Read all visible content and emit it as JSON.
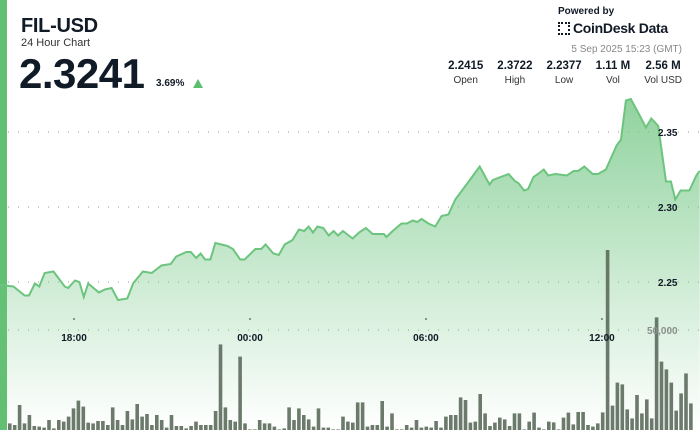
{
  "header": {
    "symbol": "FIL-USD",
    "subtitle": "24 Hour Chart",
    "price": "2.3241",
    "change": "3.69%",
    "change_direction": "up",
    "powered_by": "Powered by",
    "brand": "CoinDesk Data",
    "timestamp": "5 Sep 2025 15:23 (GMT)"
  },
  "stats": [
    {
      "value": "2.2415",
      "label": "Open"
    },
    {
      "value": "2.3722",
      "label": "High"
    },
    {
      "value": "2.2377",
      "label": "Low"
    },
    {
      "value": "1.11 M",
      "label": "Vol"
    },
    {
      "value": "2.56 M",
      "label": "Vol USD"
    }
  ],
  "colors": {
    "accent": "#62c072",
    "line": "#6cc47e",
    "volume": "#5c6b5c",
    "up": "#5cbf6e"
  },
  "chart_data": {
    "type": "area",
    "price_axis": {
      "ticks": [
        2.25,
        2.3,
        2.35
      ],
      "tick_labels": [
        "2.25",
        "2.30",
        "2.35"
      ],
      "grid": true
    },
    "volume_axis": {
      "ticks": [
        50000
      ],
      "tick_labels": [
        "50,000"
      ]
    },
    "x_ticks": [
      "18:00",
      "00:00",
      "06:00",
      "12:00"
    ],
    "price": [
      [
        "15:28",
        2.248
      ],
      [
        "15:56",
        2.247
      ],
      [
        "16:19",
        2.241
      ],
      [
        "16:28",
        2.241
      ],
      [
        "16:40",
        2.249
      ],
      [
        "16:49",
        2.247
      ],
      [
        "17:00",
        2.256
      ],
      [
        "17:18",
        2.257
      ],
      [
        "17:41",
        2.247
      ],
      [
        "17:48",
        2.246
      ],
      [
        "18:02",
        2.251
      ],
      [
        "18:11",
        2.25
      ],
      [
        "18:20",
        2.24
      ],
      [
        "18:29",
        2.249
      ],
      [
        "18:51",
        2.243
      ],
      [
        "19:03",
        2.245
      ],
      [
        "19:17",
        2.246
      ],
      [
        "19:30",
        2.238
      ],
      [
        "19:49",
        2.239
      ],
      [
        "20:01",
        2.249
      ],
      [
        "20:21",
        2.257
      ],
      [
        "20:39",
        2.256
      ],
      [
        "20:59",
        2.261
      ],
      [
        "21:18",
        2.262
      ],
      [
        "21:29",
        2.267
      ],
      [
        "21:50",
        2.27
      ],
      [
        "21:59",
        2.27
      ],
      [
        "22:10",
        2.266
      ],
      [
        "22:19",
        2.269
      ],
      [
        "22:28",
        2.265
      ],
      [
        "22:39",
        2.265
      ],
      [
        "22:49",
        2.276
      ],
      [
        "23:14",
        2.274
      ],
      [
        "23:25",
        2.272
      ],
      [
        "23:40",
        2.265
      ],
      [
        "23:49",
        2.265
      ],
      [
        "00:11",
        2.272
      ],
      [
        "00:23",
        2.272
      ],
      [
        "00:32",
        2.275
      ],
      [
        "00:48",
        2.269
      ],
      [
        "00:59",
        2.268
      ],
      [
        "01:11",
        2.275
      ],
      [
        "01:27",
        2.278
      ],
      [
        "01:40",
        2.285
      ],
      [
        "01:51",
        2.284
      ],
      [
        "02:00",
        2.287
      ],
      [
        "02:09",
        2.283
      ],
      [
        "02:18",
        2.287
      ],
      [
        "02:30",
        2.286
      ],
      [
        "02:41",
        2.281
      ],
      [
        "02:51",
        2.284
      ],
      [
        "03:00",
        2.281
      ],
      [
        "03:10",
        2.284
      ],
      [
        "03:30",
        2.279
      ],
      [
        "03:43",
        2.283
      ],
      [
        "03:57",
        2.286
      ],
      [
        "04:11",
        2.282
      ],
      [
        "04:34",
        2.282
      ],
      [
        "04:39",
        2.28
      ],
      [
        "04:52",
        2.284
      ],
      [
        "05:10",
        2.289
      ],
      [
        "05:21",
        2.289
      ],
      [
        "05:33",
        2.291
      ],
      [
        "05:42",
        2.29
      ],
      [
        "05:51",
        2.292
      ],
      [
        "06:05",
        2.289
      ],
      [
        "06:19",
        2.287
      ],
      [
        "06:32",
        2.294
      ],
      [
        "06:46",
        2.295
      ],
      [
        "07:00",
        2.305
      ],
      [
        "07:23",
        2.315
      ],
      [
        "07:50",
        2.327
      ],
      [
        "08:10",
        2.315
      ],
      [
        "08:17",
        2.318
      ],
      [
        "08:49",
        2.322
      ],
      [
        "09:03",
        2.317
      ],
      [
        "09:09",
        2.316
      ],
      [
        "09:21",
        2.311
      ],
      [
        "09:29",
        2.312
      ],
      [
        "09:40",
        2.32
      ],
      [
        "09:49",
        2.322
      ],
      [
        "10:01",
        2.325
      ],
      [
        "10:10",
        2.321
      ],
      [
        "10:25",
        2.322
      ],
      [
        "10:48",
        2.321
      ],
      [
        "11:02",
        2.324
      ],
      [
        "11:11",
        2.324
      ],
      [
        "11:24",
        2.327
      ],
      [
        "11:41",
        2.322
      ],
      [
        "11:52",
        2.322
      ],
      [
        "12:08",
        2.325
      ],
      [
        "12:30",
        2.341
      ],
      [
        "12:39",
        2.345
      ],
      [
        "12:49",
        2.371
      ],
      [
        "12:59",
        2.372
      ],
      [
        "13:14",
        2.363
      ],
      [
        "13:30",
        2.353
      ],
      [
        "13:41",
        2.359
      ],
      [
        "13:55",
        2.354
      ],
      [
        "14:11",
        2.317
      ],
      [
        "14:21",
        2.317
      ],
      [
        "14:30",
        2.305
      ],
      [
        "14:41",
        2.311
      ],
      [
        "14:59",
        2.311
      ],
      [
        "15:13",
        2.321
      ],
      [
        "15:20",
        2.324
      ]
    ],
    "volume": [
      3300,
      2500,
      12500,
      3300,
      7500,
      2000,
      1700,
      1200,
      5000,
      800,
      5000,
      4200,
      6700,
      10800,
      14700,
      11700,
      3700,
      3300,
      4500,
      4500,
      2500,
      11300,
      5000,
      2500,
      9500,
      5300,
      13000,
      6700,
      8000,
      2500,
      7500,
      5000,
      1200,
      7500,
      2000,
      2000,
      800,
      2000,
      4200,
      2500,
      2500,
      2500,
      9500,
      42800,
      11300,
      5000,
      4200,
      36700,
      3300,
      300,
      300,
      5000,
      3300,
      3300,
      1700,
      300,
      800,
      11300,
      5000,
      10800,
      7500,
      5300,
      1700,
      10800,
      1200,
      1200,
      300,
      300,
      6700,
      4200,
      3700,
      13800,
      13800,
      1700,
      2500,
      2500,
      14500,
      1700,
      8300,
      300,
      300,
      2500,
      1200,
      5000,
      1200,
      1700,
      1200,
      4500,
      1200,
      6700,
      7500,
      7500,
      16300,
      15000,
      3700,
      4200,
      18000,
      8300,
      2000,
      3700,
      6200,
      5300,
      2000,
      8300,
      8300,
      300,
      4200,
      8700,
      1200,
      300,
      4200,
      3800,
      300,
      6200,
      8700,
      2800,
      9000,
      9000,
      2500,
      1700,
      3300,
      8800,
      90000,
      12200,
      23700,
      22800,
      10300,
      5800,
      17500,
      8300,
      15300,
      5800,
      56300,
      34200,
      30300,
      23700,
      9700,
      18300,
      28300,
      13300
    ]
  }
}
